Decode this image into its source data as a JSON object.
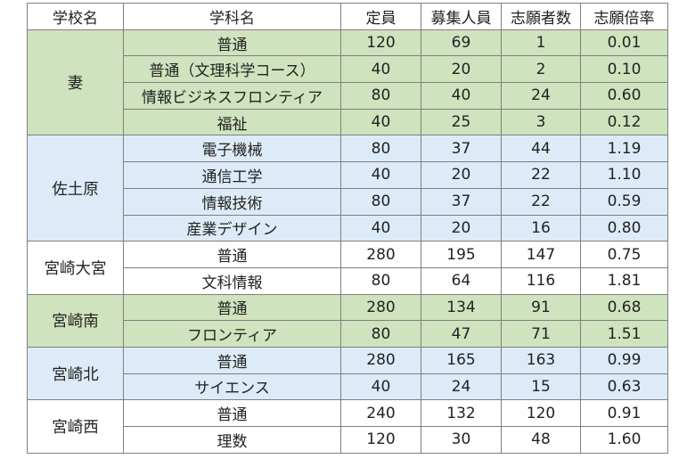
{
  "headers": {
    "school": "学校名",
    "department": "学科名",
    "capacity": "定員",
    "recruit": "募集人員",
    "applicants": "志願者数",
    "ratio": "志願倍率"
  },
  "colors": {
    "green": "#cfe3be",
    "blue": "#dcebf7",
    "white": "#ffffff",
    "border": "#7f7f7f"
  },
  "schools": [
    {
      "name": "妻",
      "color": "green",
      "rows": [
        {
          "dept": "普通",
          "capacity": "120",
          "recruit": "69",
          "applicants": "1",
          "ratio": "0.01"
        },
        {
          "dept": "普通（文理科学コース）",
          "capacity": "40",
          "recruit": "20",
          "applicants": "2",
          "ratio": "0.10"
        },
        {
          "dept": "情報ビジネスフロンティア",
          "capacity": "80",
          "recruit": "40",
          "applicants": "24",
          "ratio": "0.60"
        },
        {
          "dept": "福祉",
          "capacity": "40",
          "recruit": "25",
          "applicants": "3",
          "ratio": "0.12"
        }
      ]
    },
    {
      "name": "佐土原",
      "color": "blue",
      "rows": [
        {
          "dept": "電子機械",
          "capacity": "80",
          "recruit": "37",
          "applicants": "44",
          "ratio": "1.19"
        },
        {
          "dept": "通信工学",
          "capacity": "40",
          "recruit": "20",
          "applicants": "22",
          "ratio": "1.10"
        },
        {
          "dept": "情報技術",
          "capacity": "80",
          "recruit": "37",
          "applicants": "22",
          "ratio": "0.59"
        },
        {
          "dept": "産業デザイン",
          "capacity": "40",
          "recruit": "20",
          "applicants": "16",
          "ratio": "0.80"
        }
      ]
    },
    {
      "name": "宮崎大宮",
      "color": "white",
      "rows": [
        {
          "dept": "普通",
          "capacity": "280",
          "recruit": "195",
          "applicants": "147",
          "ratio": "0.75"
        },
        {
          "dept": "文科情報",
          "capacity": "80",
          "recruit": "64",
          "applicants": "116",
          "ratio": "1.81"
        }
      ]
    },
    {
      "name": "宮崎南",
      "color": "green",
      "rows": [
        {
          "dept": "普通",
          "capacity": "280",
          "recruit": "134",
          "applicants": "91",
          "ratio": "0.68"
        },
        {
          "dept": "フロンティア",
          "capacity": "80",
          "recruit": "47",
          "applicants": "71",
          "ratio": "1.51"
        }
      ]
    },
    {
      "name": "宮崎北",
      "color": "blue",
      "rows": [
        {
          "dept": "普通",
          "capacity": "280",
          "recruit": "165",
          "applicants": "163",
          "ratio": "0.99"
        },
        {
          "dept": "サイエンス",
          "capacity": "40",
          "recruit": "24",
          "applicants": "15",
          "ratio": "0.63"
        }
      ]
    },
    {
      "name": "宮崎西",
      "color": "white",
      "rows": [
        {
          "dept": "普通",
          "capacity": "240",
          "recruit": "132",
          "applicants": "120",
          "ratio": "0.91"
        },
        {
          "dept": "理数",
          "capacity": "120",
          "recruit": "30",
          "applicants": "48",
          "ratio": "1.60"
        }
      ]
    }
  ]
}
